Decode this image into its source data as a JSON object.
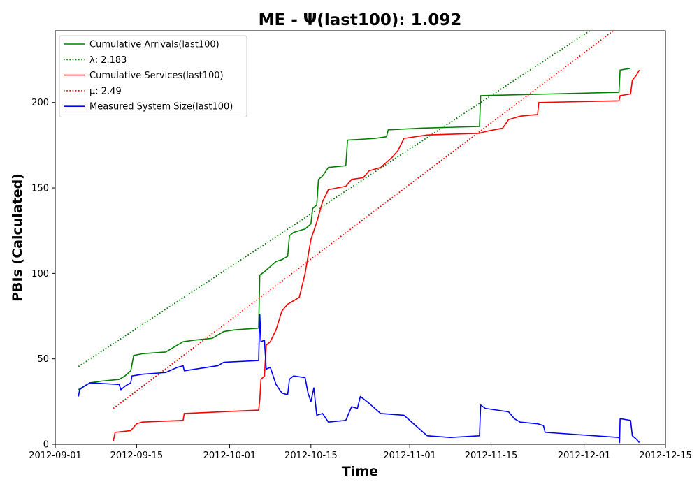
{
  "chart_data": {
    "type": "line",
    "title": "ME -  Ψ(last100): 1.092",
    "xlabel": "Time",
    "ylabel": "PBIs (Calculated)",
    "xlim": [
      "2012-09-01",
      "2012-12-15"
    ],
    "ylim": [
      0,
      242
    ],
    "x_ticks": [
      "2012-09-01",
      "2012-09-15",
      "2012-10-01",
      "2012-10-15",
      "2012-11-01",
      "2012-11-15",
      "2012-12-01",
      "2012-12-15"
    ],
    "y_ticks": [
      0,
      50,
      100,
      150,
      200
    ],
    "grid": false,
    "legend_position": "top-left",
    "series": [
      {
        "name": "Cumulative Arrivals(last100)",
        "color": "#008000",
        "style": "solid",
        "points": [
          [
            "2012-09-05",
            32
          ],
          [
            "2012-09-06",
            34
          ],
          [
            "2012-09-07",
            36
          ],
          [
            "2012-09-09",
            37
          ],
          [
            "2012-09-12",
            38
          ],
          [
            "2012-09-13",
            40
          ],
          [
            "2012-09-14",
            43
          ],
          [
            "2012-09-14.5",
            52
          ],
          [
            "2012-09-16",
            53
          ],
          [
            "2012-09-20",
            54
          ],
          [
            "2012-09-21",
            56
          ],
          [
            "2012-09-23",
            60
          ],
          [
            "2012-09-25",
            61
          ],
          [
            "2012-09-28",
            62
          ],
          [
            "2012-09-29",
            64
          ],
          [
            "2012-09-30",
            66
          ],
          [
            "2012-10-02",
            67
          ],
          [
            "2012-10-06",
            68
          ],
          [
            "2012-10-06.2",
            99
          ],
          [
            "2012-10-07",
            101
          ],
          [
            "2012-10-08",
            104
          ],
          [
            "2012-10-09",
            107
          ],
          [
            "2012-10-10",
            108
          ],
          [
            "2012-10-11",
            110
          ],
          [
            "2012-10-11.3",
            122
          ],
          [
            "2012-10-12",
            124
          ],
          [
            "2012-10-14",
            126
          ],
          [
            "2012-10-15",
            129
          ],
          [
            "2012-10-15.3",
            138
          ],
          [
            "2012-10-16",
            140
          ],
          [
            "2012-10-16.3",
            155
          ],
          [
            "2012-10-17",
            157
          ],
          [
            "2012-10-18",
            162
          ],
          [
            "2012-10-21",
            163
          ],
          [
            "2012-10-21.3",
            178
          ],
          [
            "2012-10-26",
            179
          ],
          [
            "2012-10-28",
            180
          ],
          [
            "2012-10-28.3",
            184
          ],
          [
            "2012-11-03",
            185
          ],
          [
            "2012-11-13",
            186
          ],
          [
            "2012-11-13.2",
            204
          ],
          [
            "2012-12-07",
            206
          ],
          [
            "2012-12-07.2",
            219
          ],
          [
            "2012-12-09",
            220
          ]
        ]
      },
      {
        "name": "λ: 2.183",
        "color": "#008000",
        "style": "dotted",
        "points": [
          [
            "2012-09-05",
            45.5
          ],
          [
            "2012-12-02",
            242
          ]
        ]
      },
      {
        "name": "Cumulative Services(last100)",
        "color": "#ff0000",
        "style": "solid",
        "points": [
          [
            "2012-09-11",
            2
          ],
          [
            "2012-09-11.3",
            7
          ],
          [
            "2012-09-14",
            8
          ],
          [
            "2012-09-15",
            12
          ],
          [
            "2012-09-16",
            13
          ],
          [
            "2012-09-23",
            14
          ],
          [
            "2012-09-23.2",
            18
          ],
          [
            "2012-10-06",
            20
          ],
          [
            "2012-10-06.2",
            26
          ],
          [
            "2012-10-06.4",
            38
          ],
          [
            "2012-10-07",
            40
          ],
          [
            "2012-10-07.3",
            58
          ],
          [
            "2012-10-08",
            60
          ],
          [
            "2012-10-09",
            67
          ],
          [
            "2012-10-10",
            78
          ],
          [
            "2012-10-11",
            82
          ],
          [
            "2012-10-12",
            84
          ],
          [
            "2012-10-13",
            86
          ],
          [
            "2012-10-14",
            100
          ],
          [
            "2012-10-15",
            120
          ],
          [
            "2012-10-16",
            130
          ],
          [
            "2012-10-17",
            142
          ],
          [
            "2012-10-18",
            149
          ],
          [
            "2012-10-21",
            151
          ],
          [
            "2012-10-22",
            155
          ],
          [
            "2012-10-24",
            156
          ],
          [
            "2012-10-25",
            160
          ],
          [
            "2012-10-27",
            162
          ],
          [
            "2012-10-28",
            165
          ],
          [
            "2012-10-29",
            168
          ],
          [
            "2012-10-30",
            172
          ],
          [
            "2012-10-31",
            179
          ],
          [
            "2012-11-04",
            181
          ],
          [
            "2012-11-13",
            182
          ],
          [
            "2012-11-14",
            183
          ],
          [
            "2012-11-17",
            185
          ],
          [
            "2012-11-18",
            190
          ],
          [
            "2012-11-20",
            192
          ],
          [
            "2012-11-23",
            193
          ],
          [
            "2012-11-23.2",
            200
          ],
          [
            "2012-12-07",
            201
          ],
          [
            "2012-12-07.2",
            204
          ],
          [
            "2012-12-09",
            205
          ],
          [
            "2012-12-09.3",
            213
          ],
          [
            "2012-12-10",
            216
          ],
          [
            "2012-12-10.5",
            219
          ]
        ]
      },
      {
        "name": "μ: 2.49",
        "color": "#ff0000",
        "style": "dotted",
        "points": [
          [
            "2012-09-11",
            21
          ],
          [
            "2012-12-06",
            242
          ]
        ]
      },
      {
        "name": "Measured System Size(last100)",
        "color": "#0000ff",
        "style": "solid",
        "points": [
          [
            "2012-09-05",
            28
          ],
          [
            "2012-09-05.2",
            32
          ],
          [
            "2012-09-06",
            34
          ],
          [
            "2012-09-07",
            36
          ],
          [
            "2012-09-12",
            35
          ],
          [
            "2012-09-12.3",
            32
          ],
          [
            "2012-09-13",
            34
          ],
          [
            "2012-09-14",
            36
          ],
          [
            "2012-09-14.2",
            40
          ],
          [
            "2012-09-16",
            41
          ],
          [
            "2012-09-20",
            42
          ],
          [
            "2012-09-22",
            45
          ],
          [
            "2012-09-23",
            46
          ],
          [
            "2012-09-23.2",
            43
          ],
          [
            "2012-09-29",
            46
          ],
          [
            "2012-09-30",
            48
          ],
          [
            "2012-10-06",
            49
          ],
          [
            "2012-10-06.2",
            76
          ],
          [
            "2012-10-06.4",
            60
          ],
          [
            "2012-10-07",
            61
          ],
          [
            "2012-10-07.3",
            44
          ],
          [
            "2012-10-08",
            45
          ],
          [
            "2012-10-09",
            35
          ],
          [
            "2012-10-10",
            30
          ],
          [
            "2012-10-11",
            29
          ],
          [
            "2012-10-11.3",
            38
          ],
          [
            "2012-10-12",
            40
          ],
          [
            "2012-10-14",
            39
          ],
          [
            "2012-10-14.5",
            30
          ],
          [
            "2012-10-15",
            25
          ],
          [
            "2012-10-15.5",
            33
          ],
          [
            "2012-10-16",
            17
          ],
          [
            "2012-10-17",
            18
          ],
          [
            "2012-10-18",
            13
          ],
          [
            "2012-10-21",
            14
          ],
          [
            "2012-10-22",
            22
          ],
          [
            "2012-10-23",
            21
          ],
          [
            "2012-10-23.5",
            28
          ],
          [
            "2012-10-25",
            24
          ],
          [
            "2012-10-27",
            18
          ],
          [
            "2012-10-31",
            17
          ],
          [
            "2012-11-01",
            14
          ],
          [
            "2012-11-02",
            11
          ],
          [
            "2012-11-04",
            5
          ],
          [
            "2012-11-08",
            4
          ],
          [
            "2012-11-13",
            5
          ],
          [
            "2012-11-13.2",
            23
          ],
          [
            "2012-11-14",
            21
          ],
          [
            "2012-11-18",
            19
          ],
          [
            "2012-11-19",
            15
          ],
          [
            "2012-11-20",
            13
          ],
          [
            "2012-11-23",
            12
          ],
          [
            "2012-11-24",
            11
          ],
          [
            "2012-11-24.3",
            7
          ],
          [
            "2012-12-07",
            4
          ],
          [
            "2012-12-07.1",
            1
          ],
          [
            "2012-12-07.2",
            15
          ],
          [
            "2012-12-09",
            14
          ],
          [
            "2012-12-09.3",
            5
          ],
          [
            "2012-12-10",
            3
          ],
          [
            "2012-12-10.5",
            1
          ]
        ]
      }
    ]
  }
}
